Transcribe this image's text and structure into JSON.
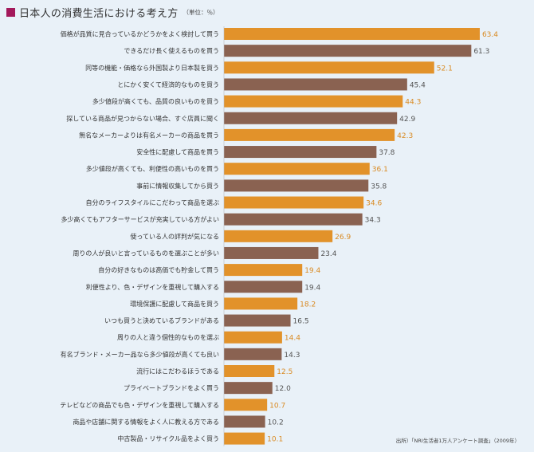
{
  "header": {
    "title": "日本人の消費生活における考え方",
    "unit": "（単位：％）"
  },
  "source": "出所）「NRI生活者1万人アンケート調査」（2009年）",
  "colors": {
    "orange": "#e2922a",
    "brown": "#8a6251",
    "orange_label": "#d98a22",
    "brown_label": "#555555",
    "background": "#e9f1f8"
  },
  "chart_data": {
    "type": "bar",
    "orientation": "horizontal",
    "categories": [
      "価格が品質に見合っているかどうかをよく検討して買う",
      "できるだけ長く使えるものを買う",
      "同等の機能・価格なら外国製より日本製を買う",
      "とにかく安くて経済的なものを買う",
      "多少値段が高くても、品質の良いものを買う",
      "探している商品が見つからない場合、すぐ店員に聞く",
      "無名なメーカーよりは有名メーカーの商品を買う",
      "安全性に配慮して商品を買う",
      "多少値段が高くても、利便性の高いものを買う",
      "事前に情報収集してから買う",
      "自分のライフスタイルにこだわって商品を選ぶ",
      "多少高くてもアフターサービスが充実している方がよい",
      "使っている人の評判が気になる",
      "周りの人が良いと言っているものを選ぶことが多い",
      "自分の好きなものは高価でも貯金して買う",
      "利便性より、色・デザインを重視して購入する",
      "環境保護に配慮して商品を買う",
      "いつも買うと決めているブランドがある",
      "周りの人と違う個性的なものを選ぶ",
      "有名ブランド・メーカー品なら多少値段が高くても良い",
      "流行にはこだわるほうである",
      "プライベートブランドをよく買う",
      "テレビなどの商品でも色・デザインを重視して購入する",
      "商品や店舗に関する情報をよく人に教える方である",
      "中古製品・リサイクル品をよく買う"
    ],
    "values": [
      63.4,
      61.3,
      52.1,
      45.4,
      44.3,
      42.9,
      42.3,
      37.8,
      36.1,
      35.8,
      34.6,
      34.3,
      26.9,
      23.4,
      19.4,
      19.4,
      18.2,
      16.5,
      14.4,
      14.3,
      12.5,
      12.0,
      10.7,
      10.2,
      10.1
    ],
    "value_labels": [
      "63.4",
      "61.3",
      "52.1",
      "45.4",
      "44.3",
      "42.9",
      "42.3",
      "37.8",
      "36.1",
      "35.8",
      "34.6",
      "34.3",
      "26.9",
      "23.4",
      "19.4",
      "19.4",
      "18.2",
      "16.5",
      "14.4",
      "14.3",
      "12.5",
      "12.0",
      "10.7",
      "10.2",
      "10.1"
    ],
    "bar_colors": [
      "orange",
      "brown",
      "orange",
      "brown",
      "orange",
      "brown",
      "orange",
      "brown",
      "orange",
      "brown",
      "orange",
      "brown",
      "orange",
      "brown",
      "orange",
      "brown",
      "orange",
      "brown",
      "orange",
      "brown",
      "orange",
      "brown",
      "orange",
      "brown",
      "orange"
    ],
    "xlim": [
      0,
      64
    ],
    "grid": false,
    "legend": "none"
  }
}
